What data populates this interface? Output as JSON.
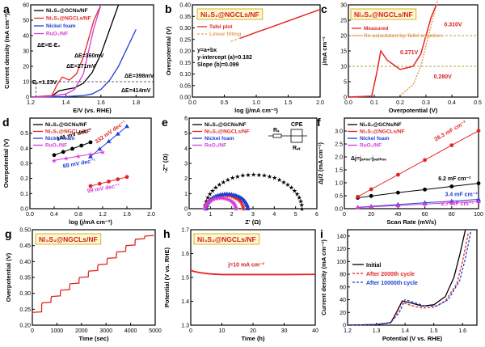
{
  "chart_data": [
    {
      "id": "a",
      "panel_letter": "a",
      "type": "line",
      "xlabel": "E/V (vs. RHE)",
      "ylabel": "Current density (mA cm⁻²)",
      "xlim": [
        1.2,
        1.9
      ],
      "ylim": [
        0,
        60
      ],
      "xticks": [
        "1.2",
        "1.4",
        "1.6",
        "1.8"
      ],
      "yticks": [
        "0",
        "10",
        "20",
        "30",
        "40",
        "50",
        "60"
      ],
      "legend": [
        "Ni₃S₂@GCNs/NF",
        "Ni₃S₂@NGCLs/NF",
        "Nickel foam",
        "RuO₂/NF"
      ],
      "legend_position": "top-left",
      "equation": "ΔE=E-E₀",
      "annotations": [
        "E₀=1.23V",
        "ΔE=360mV",
        "ΔE=271mV",
        "ΔE=398mV",
        "ΔE=414mV"
      ],
      "series": [
        {
          "name": "Ni₃S₂@GCNs/NF",
          "color": "#000000",
          "x": [
            1.2,
            1.32,
            1.36,
            1.4,
            1.45,
            1.5,
            1.55,
            1.6,
            1.65,
            1.7
          ],
          "y": [
            0,
            0.5,
            4,
            5,
            6,
            9,
            16,
            28,
            44,
            60
          ]
        },
        {
          "name": "Ni₃S₂@NGCLs/NF",
          "color": "#e32626",
          "x": [
            1.2,
            1.32,
            1.35,
            1.38,
            1.42,
            1.46,
            1.5,
            1.53,
            1.56,
            1.6
          ],
          "y": [
            0,
            1,
            8,
            13,
            11,
            15,
            26,
            38,
            50,
            60
          ]
        },
        {
          "name": "Nickel foam",
          "color": "#1f3fd6",
          "x": [
            1.2,
            1.4,
            1.5,
            1.55,
            1.6,
            1.65,
            1.7,
            1.75,
            1.8
          ],
          "y": [
            0,
            0.3,
            1,
            2,
            5,
            11,
            20,
            32,
            44
          ]
        },
        {
          "name": "RuO₂/NF",
          "color": "#d63bd6",
          "x": [
            1.2,
            1.3,
            1.4,
            1.45,
            1.5,
            1.53,
            1.56,
            1.6
          ],
          "y": [
            0,
            0.3,
            2,
            5,
            15,
            30,
            45,
            60
          ]
        }
      ]
    },
    {
      "id": "b",
      "panel_letter": "b",
      "type": "line",
      "xlabel": "log (j/mA cm⁻²)",
      "ylabel": "Overpotential (V)",
      "xlim": [
        0,
        2.0
      ],
      "ylim": [
        0,
        0.4
      ],
      "xticks": [
        "0.0",
        "0.5",
        "1.0",
        "1.5",
        "2.0"
      ],
      "yticks": [
        "0.00",
        "0.05",
        "0.10",
        "0.15",
        "0.20",
        "0.25",
        "0.30",
        "0.35",
        "0.40"
      ],
      "title_box": "Ni₃S₂@NGCLs/NF",
      "legend": [
        "Tafel plot",
        "Linear fitting"
      ],
      "legend_position": "top-left",
      "equation_lines": [
        "y=a+bx",
        "y-intercept (a)=0.182",
        "Slope (b)=0.099"
      ],
      "series": [
        {
          "name": "Tafel plot",
          "color": "#e32626",
          "x": [
            0.75,
            1.0,
            1.25,
            1.5,
            1.75,
            2.0
          ],
          "y": [
            0.255,
            0.281,
            0.305,
            0.33,
            0.355,
            0.38
          ]
        },
        {
          "name": "Linear fitting",
          "color": "#e8a060",
          "x": [
            0.6,
            2.0
          ],
          "y": [
            0.241,
            0.38
          ]
        }
      ]
    },
    {
      "id": "c",
      "panel_letter": "c",
      "type": "line",
      "xlabel": "Overpotential (V)",
      "ylabel": "j/mA cm⁻²",
      "xlim": [
        0,
        0.5
      ],
      "ylim": [
        0,
        30
      ],
      "xticks": [
        "0.0",
        "0.1",
        "0.2",
        "0.3",
        "0.4",
        "0.5"
      ],
      "yticks": [
        "0",
        "5",
        "10",
        "15",
        "20",
        "25",
        "30"
      ],
      "title_box": "Ni₃S₂@NGCLs/NF",
      "legend": [
        "Measured",
        "Re-calculated by Tafel equation"
      ],
      "legend_position": "top-left",
      "reference_lines_y": [
        10,
        20
      ],
      "annotations": [
        "0.271V",
        "0.280V",
        "0.310V"
      ],
      "series": [
        {
          "name": "Measured",
          "color": "#e32626",
          "x": [
            0.0,
            0.09,
            0.11,
            0.125,
            0.15,
            0.2,
            0.25,
            0.28,
            0.3,
            0.32,
            0.34
          ],
          "y": [
            0,
            0.3,
            8,
            15,
            12,
            9,
            10,
            14,
            20,
            26,
            30
          ]
        },
        {
          "name": "Re-calculated by Tafel equation",
          "color": "#e8a060",
          "x": [
            0.2,
            0.25,
            0.28,
            0.31,
            0.34,
            0.36
          ],
          "y": [
            0.5,
            4,
            10,
            20,
            30,
            38
          ]
        }
      ]
    },
    {
      "id": "d",
      "panel_letter": "d",
      "type": "line",
      "xlabel": "log (j/mA cm⁻²)",
      "ylabel": "Overpotential (V)",
      "xlim": [
        0,
        2.0
      ],
      "ylim": [
        0,
        0.6
      ],
      "xticks": [
        "0.0",
        "0.4",
        "0.8",
        "1.2",
        "1.6",
        "2.0"
      ],
      "yticks": [
        "0.0",
        "0.1",
        "0.2",
        "0.3",
        "0.4",
        "0.5"
      ],
      "legend": [
        "Ni₃S₂@GCNs/NF",
        "Ni₃S₂@NGCLs/NF",
        "Nickel foam",
        "RuO₂/NF"
      ],
      "legend_position": "top-left",
      "slopes": [
        "141 mV dec⁻¹",
        "332 mV dec⁻¹",
        "68 mV dec⁻¹",
        "99 mV dec⁻¹"
      ],
      "series": [
        {
          "name": "Ni₃S₂@GCNs/NF",
          "color": "#000000",
          "x": [
            0.4,
            0.55,
            0.7,
            0.85,
            1.0
          ],
          "y": [
            0.355,
            0.376,
            0.397,
            0.418,
            0.44
          ]
        },
        {
          "name": "Ni₃S₂@NGCLs/NF",
          "color": "#e32626",
          "x": [
            1.0,
            1.15,
            1.3,
            1.45,
            1.6
          ],
          "y": [
            0.15,
            0.165,
            0.18,
            0.195,
            0.21
          ]
        },
        {
          "name": "Nickel foam",
          "color": "#1f3fd6",
          "x": [
            1.0,
            1.15,
            1.3,
            1.45,
            1.6
          ],
          "y": [
            0.345,
            0.395,
            0.445,
            0.495,
            0.545
          ]
        },
        {
          "name": "RuO₂/NF",
          "color": "#d63bd6",
          "x": [
            0.4,
            0.6,
            0.8,
            1.0,
            1.2
          ],
          "y": [
            0.32,
            0.334,
            0.347,
            0.361,
            0.374
          ]
        }
      ]
    },
    {
      "id": "e",
      "panel_letter": "e",
      "type": "scatter",
      "xlabel": "Z' (Ω)",
      "ylabel": "-Z'' (Ω)",
      "xlim": [
        0,
        6
      ],
      "ylim": [
        0,
        6
      ],
      "xticks": [
        "0",
        "1",
        "2",
        "3",
        "4",
        "5",
        "6"
      ],
      "yticks": [
        "0",
        "1",
        "2",
        "3",
        "4",
        "5",
        "6"
      ],
      "legend": [
        "Ni₃S₂@GCNs/NF",
        "Ni₃S₂@NGCLs/NF",
        "Nickel foam",
        "RuO₂/NF"
      ],
      "legend_position": "top-left",
      "circuit_labels": [
        "Rₛ",
        "CPE",
        "Rₑₜ"
      ],
      "arcs": [
        {
          "name": "Ni₃S₂@GCNs/NF",
          "color": "#000000",
          "x0": 0.75,
          "x1": 5.3
        },
        {
          "name": "Ni₃S₂@NGCLs/NF",
          "color": "#e32626",
          "x0": 0.75,
          "x1": 2.55
        },
        {
          "name": "Nickel foam",
          "color": "#1f3fd6",
          "x0": 0.8,
          "x1": 2.75
        },
        {
          "name": "RuO₂/NF",
          "color": "#d63bd6",
          "x0": 0.75,
          "x1": 2.2
        }
      ]
    },
    {
      "id": "f",
      "panel_letter": "f",
      "type": "line",
      "xlabel": "Scan Rate (mV/s)",
      "ylabel": "Δj/2 (mA cm⁻²)",
      "xlim": [
        0,
        100
      ],
      "ylim": [
        0,
        3.5
      ],
      "xticks": [
        "0",
        "20",
        "40",
        "60",
        "80",
        "100"
      ],
      "yticks": [
        "0.0",
        "0.5",
        "1.0",
        "1.5",
        "2.0",
        "2.5",
        "3.0"
      ],
      "legend": [
        "Ni₃S₂@GCNs/NF",
        "Ni₃S₂@NGCLs/NF",
        "Nickel foam",
        "RuO₂/NF"
      ],
      "legend_position": "top-left",
      "equation": "Δj=jₐₙₒₑ-jₔₐₜₕₒₑ",
      "slopes": [
        "6.2 mF cm⁻²",
        "28.3 mF cm⁻²",
        "3.4 mF cm⁻²",
        "2.7 mF cm⁻²"
      ],
      "series": [
        {
          "name": "Ni₃S₂@GCNs/NF",
          "color": "#000000",
          "x": [
            10,
            20,
            40,
            60,
            80,
            100
          ],
          "y": [
            0.42,
            0.49,
            0.62,
            0.74,
            0.86,
            0.98
          ]
        },
        {
          "name": "Ni₃S₂@NGCLs/NF",
          "color": "#e32626",
          "x": [
            10,
            20,
            40,
            60,
            80,
            100
          ],
          "y": [
            0.46,
            0.75,
            1.31,
            1.88,
            2.45,
            3.01
          ]
        },
        {
          "name": "Nickel foam",
          "color": "#1f3fd6",
          "x": [
            10,
            20,
            40,
            60,
            80,
            100
          ],
          "y": [
            0.05,
            0.09,
            0.16,
            0.23,
            0.29,
            0.36
          ]
        },
        {
          "name": "RuO₂/NF",
          "color": "#d63bd6",
          "x": [
            10,
            20,
            40,
            60,
            80,
            100
          ],
          "y": [
            0.04,
            0.07,
            0.12,
            0.18,
            0.23,
            0.28
          ]
        }
      ]
    },
    {
      "id": "g",
      "panel_letter": "g",
      "type": "line",
      "xlabel": "Time (sec)",
      "ylabel": "Overpotential (V)",
      "xlim": [
        0,
        5000
      ],
      "ylim": [
        0.2,
        0.5
      ],
      "xticks": [
        "0",
        "1000",
        "2000",
        "3000",
        "4000",
        "5000"
      ],
      "yticks": [
        "0.20",
        "0.25",
        "0.30",
        "0.35",
        "0.40",
        "0.45",
        "0.50"
      ],
      "title_box": "Ni₃S₂@NGCLs/NF",
      "series": [
        {
          "name": "Ni₃S₂@NGCLs/NF",
          "color": "#e32626",
          "steps": [
            0.24,
            0.27,
            0.29,
            0.31,
            0.33,
            0.35,
            0.37,
            0.39,
            0.41,
            0.43,
            0.45,
            0.47,
            0.48
          ],
          "step_width_sec": 380
        }
      ]
    },
    {
      "id": "h",
      "panel_letter": "h",
      "type": "line",
      "xlabel": "Time (h)",
      "ylabel": "Potential (V vs. RHE)",
      "xlim": [
        0,
        40
      ],
      "ylim": [
        1.3,
        1.7
      ],
      "xticks": [
        "0",
        "10",
        "20",
        "30",
        "40"
      ],
      "yticks": [
        "1.3",
        "1.4",
        "1.5",
        "1.6",
        "1.7"
      ],
      "title_box": "Ni₃S₂@NGCLs/NF",
      "annotation": "j=10 mA cm⁻²",
      "series": [
        {
          "name": "Ni₃S₂@NGCLs/NF",
          "color": "#e32626",
          "x": [
            0,
            1,
            3,
            6,
            10,
            20,
            30,
            40
          ],
          "y": [
            1.53,
            1.525,
            1.52,
            1.515,
            1.512,
            1.512,
            1.512,
            1.513
          ]
        }
      ]
    },
    {
      "id": "i",
      "panel_letter": "i",
      "type": "line",
      "xlabel": "Potential (V vs. RHE)",
      "ylabel": "Current density (mA cm⁻²)",
      "xlim": [
        1.2,
        1.65
      ],
      "ylim": [
        0,
        150
      ],
      "xticks": [
        "1.2",
        "1.3",
        "1.4",
        "1.5",
        "1.6"
      ],
      "yticks": [
        "0",
        "20",
        "40",
        "60",
        "80",
        "100",
        "120",
        "140"
      ],
      "legend": [
        "Initial",
        "After 2000th cycle",
        "After 10000th cycle"
      ],
      "legend_position": "top-left",
      "series": [
        {
          "name": "Initial",
          "color": "#000000",
          "x": [
            1.2,
            1.3,
            1.35,
            1.37,
            1.39,
            1.42,
            1.46,
            1.5,
            1.54,
            1.57,
            1.59,
            1.61
          ],
          "y": [
            0,
            1,
            4,
            20,
            38,
            35,
            30,
            32,
            45,
            75,
            110,
            150
          ]
        },
        {
          "name": "After 2000th cycle",
          "color": "#e32626",
          "x": [
            1.2,
            1.3,
            1.35,
            1.37,
            1.39,
            1.42,
            1.46,
            1.5,
            1.54,
            1.58,
            1.6,
            1.62
          ],
          "y": [
            0,
            1,
            4,
            18,
            36,
            31,
            27,
            28,
            38,
            65,
            100,
            145
          ]
        },
        {
          "name": "After 10000th cycle",
          "color": "#1f3fd6",
          "x": [
            1.2,
            1.3,
            1.35,
            1.38,
            1.4,
            1.43,
            1.47,
            1.51,
            1.55,
            1.59,
            1.61,
            1.63
          ],
          "y": [
            0,
            1,
            4,
            20,
            40,
            36,
            30,
            30,
            40,
            70,
            105,
            150
          ]
        }
      ]
    }
  ]
}
